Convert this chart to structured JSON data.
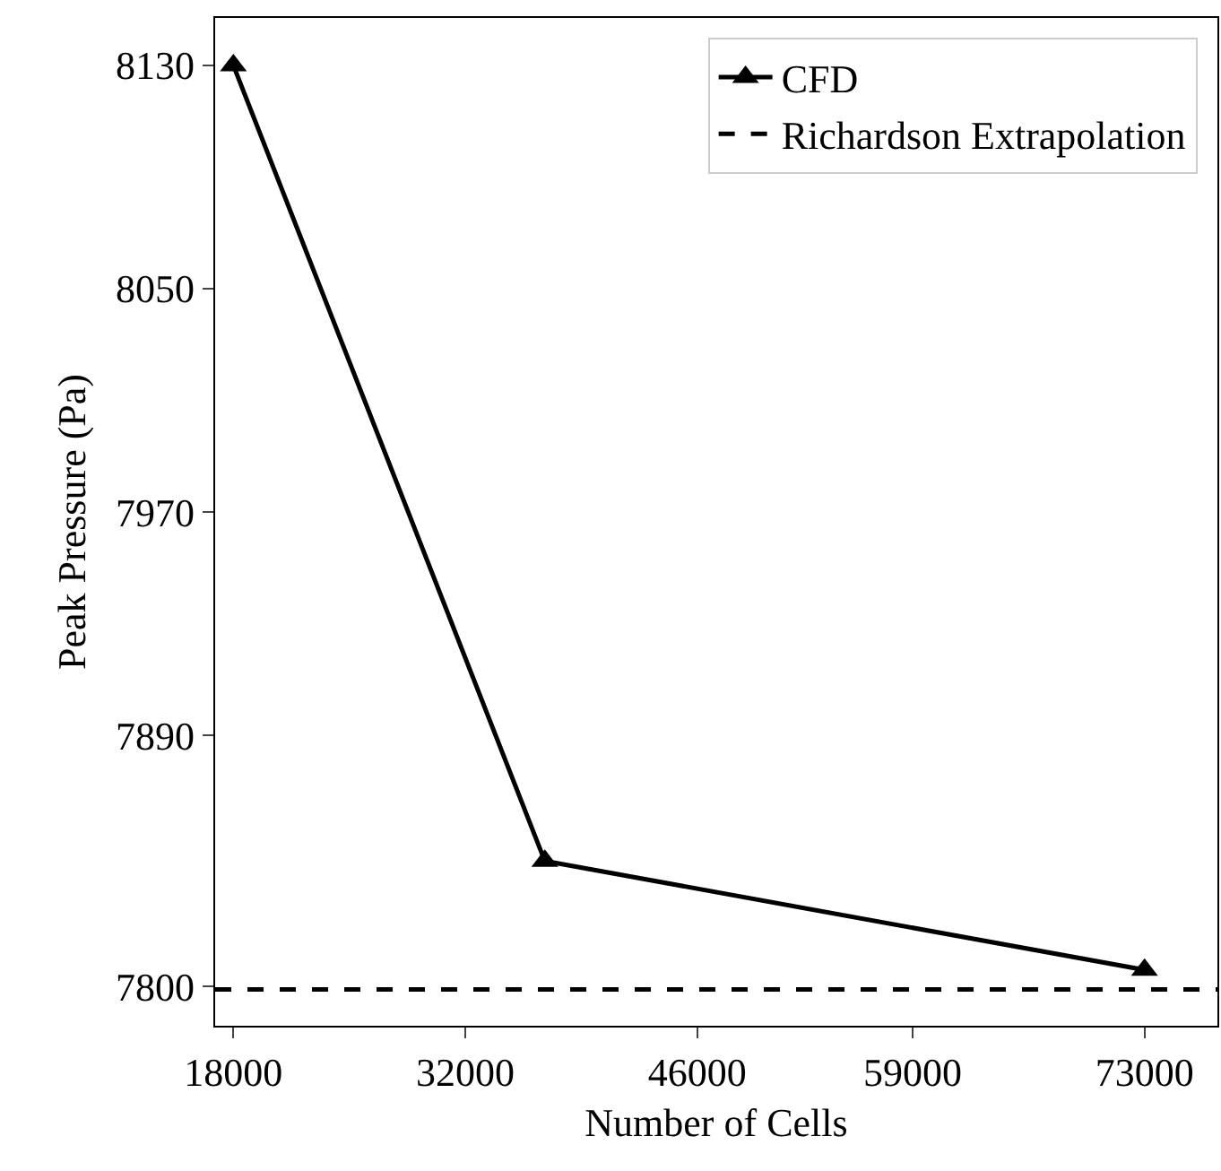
{
  "chart_data": {
    "type": "line",
    "xlabel": "Number of Cells",
    "ylabel": "Peak Pressure (Pa)",
    "xlim": [
      16900,
      77400
    ],
    "xticks": [
      18000,
      32000,
      46000,
      59000,
      73000
    ],
    "ylim": [
      7786,
      8147
    ],
    "yticks": [
      7800,
      7890,
      7970,
      8050,
      8130
    ],
    "grid": false,
    "legend": "top right",
    "series": [
      {
        "name": "CFD",
        "color": "#000000",
        "x": [
          18000,
          36800,
          73000
        ],
        "values": [
          8130,
          7845,
          7806
        ],
        "marker": "triangle",
        "line_style": "solid"
      },
      {
        "name": "Richardson Extrapolation",
        "color": "#000000",
        "x": [
          16900,
          77400
        ],
        "values": [
          7799,
          7799
        ],
        "marker": "none",
        "line_style": "dashed"
      }
    ]
  }
}
